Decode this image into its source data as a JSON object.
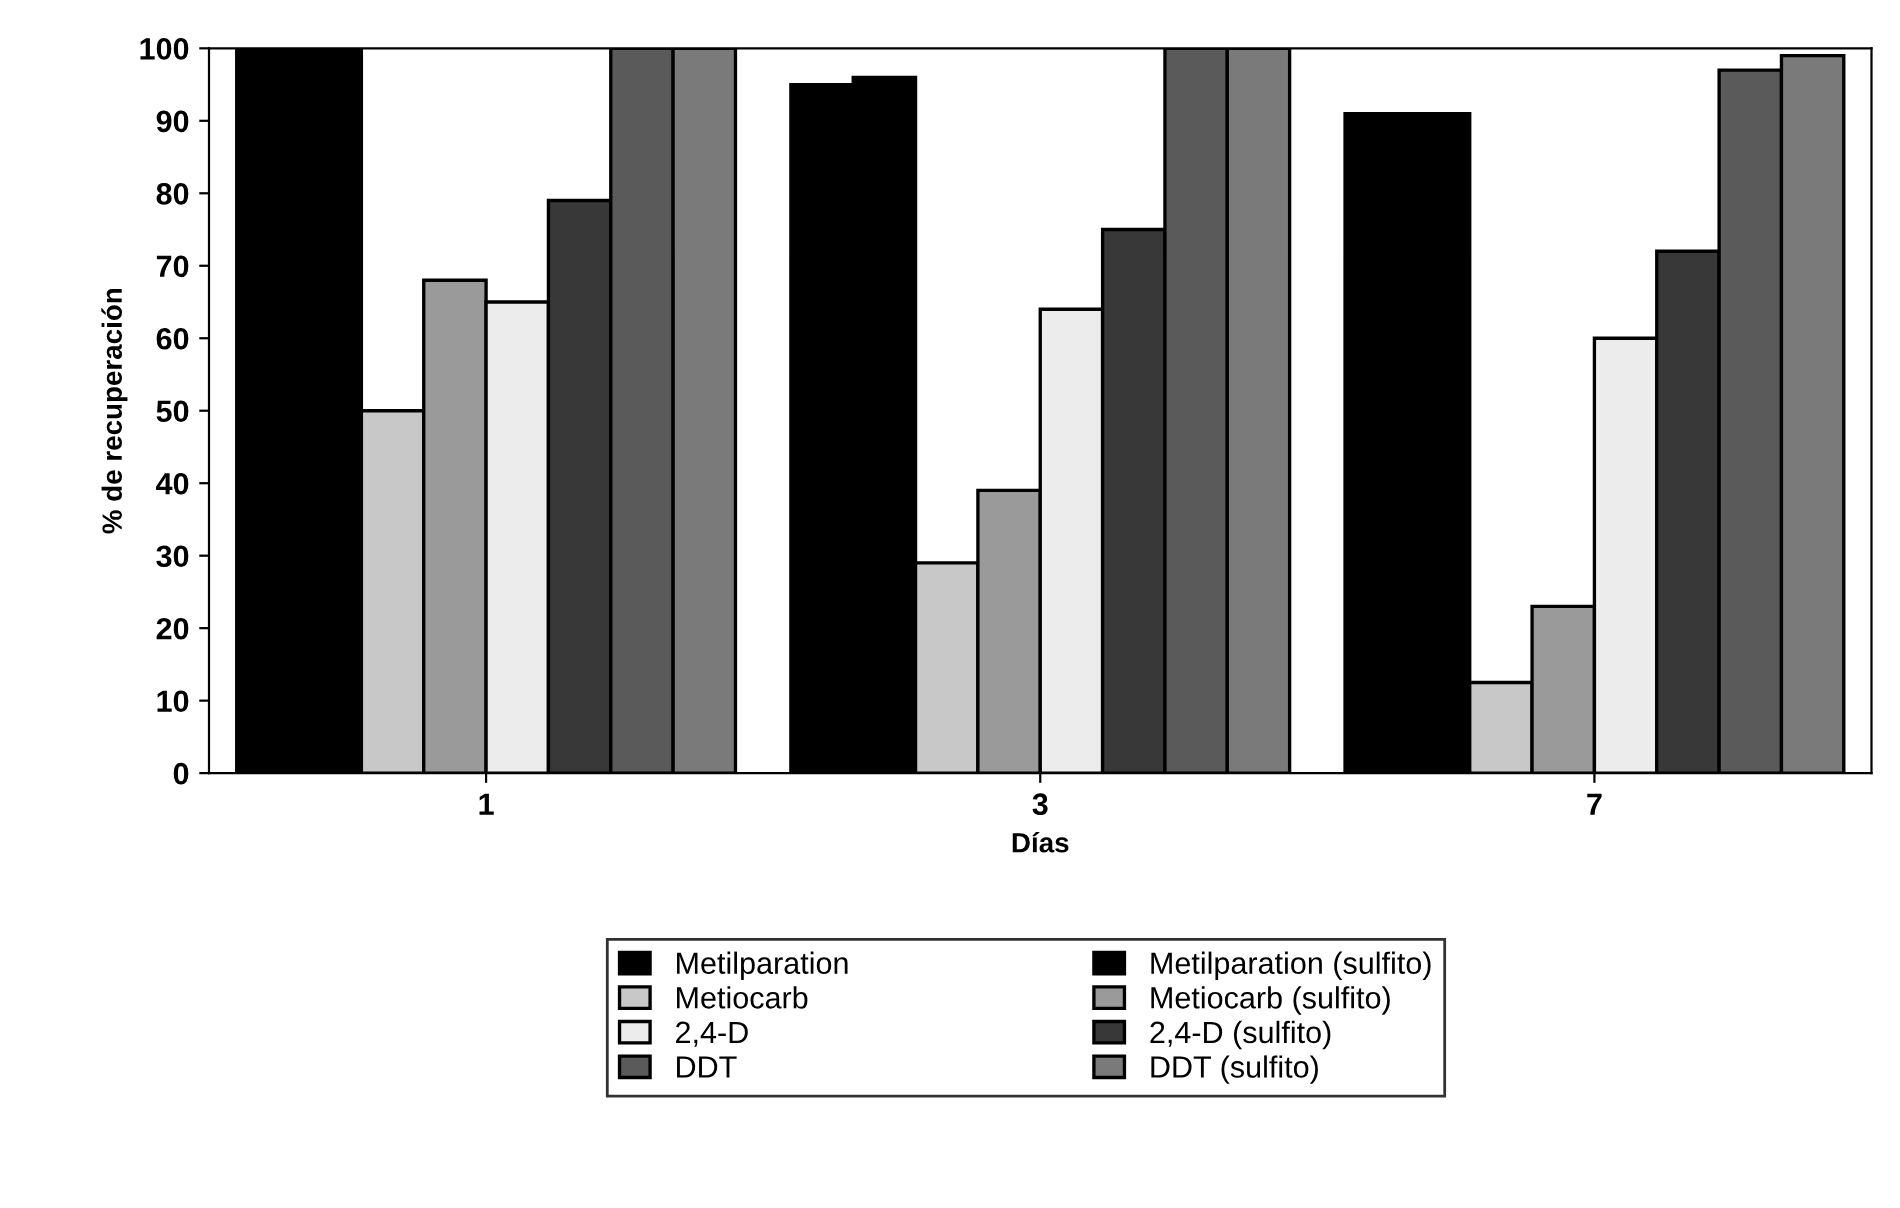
{
  "chart_data": {
    "type": "bar",
    "xlabel": "Días",
    "ylabel": "% de recuperación",
    "categories": [
      "1",
      "3",
      "7"
    ],
    "series": [
      {
        "name": "Metilparation",
        "color": "#000000",
        "values": [
          100,
          95,
          91
        ]
      },
      {
        "name": "Metilparation (sulfito)",
        "color": "#000000",
        "values": [
          100,
          96,
          91
        ]
      },
      {
        "name": "Metiocarb",
        "color": "#c8c8c8",
        "values": [
          50,
          29,
          12.5
        ]
      },
      {
        "name": "Metiocarb (sulfito)",
        "color": "#9a9a9a",
        "values": [
          68,
          39,
          23
        ]
      },
      {
        "name": "2,4-D",
        "color": "#ececec",
        "values": [
          65,
          64,
          60
        ]
      },
      {
        "name": "2,4-D (sulfito)",
        "color": "#383838",
        "values": [
          79,
          75,
          72
        ]
      },
      {
        "name": "DDT",
        "color": "#5a5a5a",
        "values": [
          100,
          100,
          97
        ]
      },
      {
        "name": "DDT (sulfito)",
        "color": "#7a7a7a",
        "values": [
          100,
          100,
          99
        ]
      }
    ],
    "ylim": [
      0,
      100
    ],
    "yticks": [
      0,
      10,
      20,
      30,
      40,
      50,
      60,
      70,
      80,
      90,
      100
    ],
    "grid": false,
    "legend": "bottom"
  }
}
